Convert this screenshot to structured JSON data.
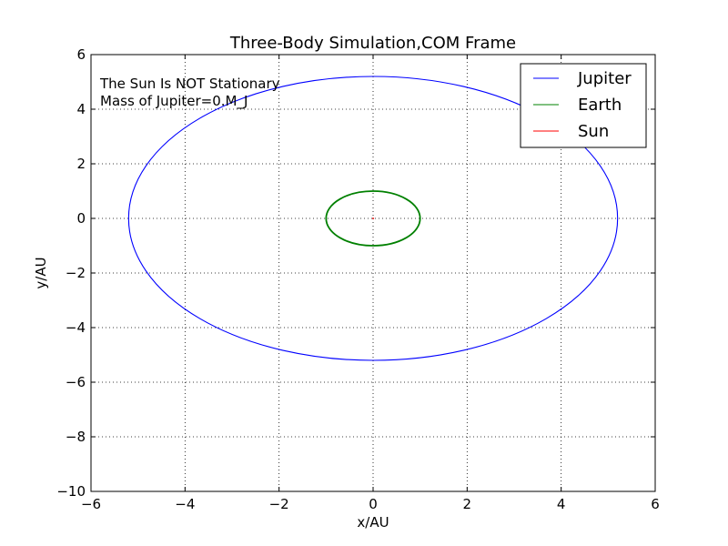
{
  "chart_data": {
    "type": "line",
    "title": "Three-Body Simulation,COM Frame",
    "xlabel": "x/AU",
    "ylabel": "y/AU",
    "xlim": [
      -6,
      6
    ],
    "ylim": [
      -10,
      6
    ],
    "xticks": [
      "−6",
      "−4",
      "−2",
      "0",
      "2",
      "4",
      "6"
    ],
    "yticks": [
      "−10",
      "−8",
      "−6",
      "−4",
      "−2",
      "0",
      "2",
      "4",
      "6"
    ],
    "xtick_values": [
      -6,
      -4,
      -2,
      0,
      2,
      4,
      6
    ],
    "ytick_values": [
      -10,
      -8,
      -6,
      -4,
      -2,
      0,
      2,
      4,
      6
    ],
    "grid": true,
    "legend_position": "top-right",
    "annotations": [
      "The Sun Is NOT Stationary",
      "Mass of Jupiter=0.M_J"
    ],
    "series": [
      {
        "name": "Jupiter",
        "color": "#0000ff",
        "shape": "ellipse",
        "center": [
          0,
          0
        ],
        "semi_axis_x": 5.2,
        "semi_axis_y": 5.2
      },
      {
        "name": "Earth",
        "color": "#008000",
        "shape": "ellipse",
        "center": [
          0,
          0
        ],
        "semi_axis_x": 1.0,
        "semi_axis_y": 1.0
      },
      {
        "name": "Sun",
        "color": "#ff0000",
        "shape": "segment",
        "x": [
          -0.02,
          0.02
        ],
        "y": [
          0,
          0
        ]
      }
    ]
  }
}
